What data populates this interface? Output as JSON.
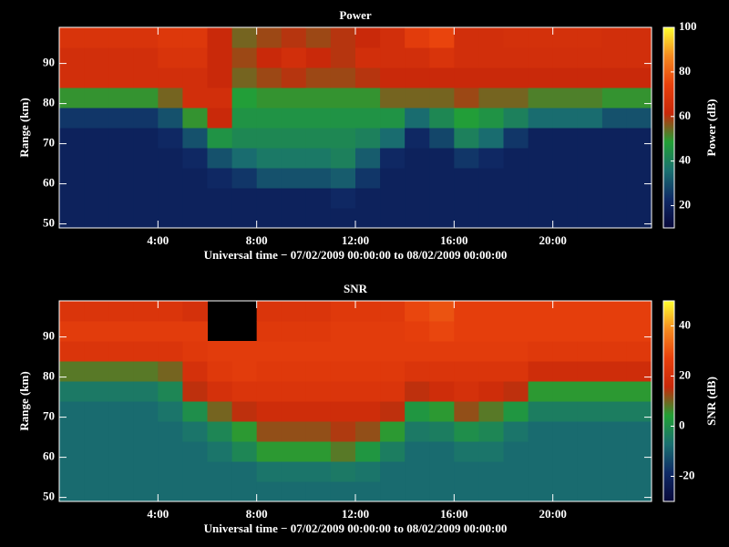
{
  "chart_data": [
    {
      "type": "heatmap",
      "title": "Power",
      "xlabel": "Universal time − 07/02/2009 00:00:00 to 08/02/2009 00:00:00",
      "ylabel": "Range (km)",
      "colorbar_label": "Power (dB)",
      "x_bins": [
        0,
        1,
        2,
        3,
        4,
        5,
        6,
        7,
        8,
        9,
        10,
        11,
        12,
        13,
        14,
        15,
        16,
        17,
        18,
        19,
        20,
        21,
        22,
        23,
        24
      ],
      "y_bins": [
        49,
        54,
        59,
        64,
        69,
        74,
        79,
        84,
        89,
        94,
        99
      ],
      "z": [
        [
          20,
          20,
          20,
          20,
          20,
          20,
          20,
          20,
          20,
          20,
          20,
          20,
          20,
          20,
          20,
          20,
          20,
          20,
          20,
          20,
          20,
          20,
          20,
          20
        ],
        [
          20,
          20,
          20,
          20,
          20,
          20,
          20,
          20,
          20,
          20,
          20,
          22,
          20,
          20,
          20,
          20,
          20,
          20,
          20,
          20,
          20,
          20,
          20,
          20
        ],
        [
          20,
          20,
          20,
          20,
          20,
          20,
          22,
          25,
          30,
          30,
          30,
          32,
          25,
          20,
          20,
          20,
          20,
          20,
          20,
          20,
          20,
          20,
          20,
          20
        ],
        [
          20,
          20,
          20,
          20,
          20,
          22,
          30,
          35,
          38,
          38,
          38,
          40,
          32,
          22,
          20,
          20,
          25,
          22,
          20,
          20,
          20,
          20,
          20,
          20
        ],
        [
          20,
          20,
          20,
          20,
          22,
          30,
          45,
          42,
          42,
          42,
          42,
          42,
          40,
          35,
          22,
          28,
          40,
          35,
          25,
          20,
          20,
          20,
          20,
          20
        ],
        [
          25,
          25,
          25,
          25,
          30,
          50,
          62,
          45,
          45,
          45,
          45,
          45,
          45,
          45,
          35,
          42,
          48,
          45,
          40,
          35,
          35,
          35,
          30,
          30
        ],
        [
          50,
          50,
          50,
          50,
          55,
          65,
          65,
          48,
          50,
          50,
          50,
          50,
          50,
          55,
          55,
          55,
          58,
          55,
          55,
          52,
          52,
          52,
          50,
          50
        ],
        [
          65,
          65,
          65,
          65,
          65,
          65,
          62,
          55,
          58,
          60,
          58,
          58,
          60,
          62,
          62,
          62,
          62,
          62,
          62,
          62,
          62,
          62,
          62,
          62
        ],
        [
          65,
          65,
          65,
          65,
          68,
          68,
          62,
          58,
          62,
          65,
          62,
          60,
          65,
          65,
          65,
          68,
          65,
          65,
          65,
          65,
          65,
          65,
          65,
          65
        ],
        [
          68,
          68,
          68,
          68,
          70,
          70,
          62,
          55,
          58,
          60,
          58,
          60,
          62,
          65,
          72,
          75,
          65,
          65,
          66,
          66,
          66,
          66,
          65,
          65
        ]
      ],
      "xlim": [
        0,
        24
      ],
      "ylim": [
        49,
        99
      ],
      "xticks": [
        {
          "value": 4,
          "label": "4:00"
        },
        {
          "value": 8,
          "label": "8:00"
        },
        {
          "value": 12,
          "label": "12:00"
        },
        {
          "value": 16,
          "label": "16:00"
        },
        {
          "value": 20,
          "label": "20:00"
        }
      ],
      "yticks": [
        50,
        60,
        70,
        80,
        90
      ],
      "clim": [
        10,
        100
      ],
      "cticks": [
        20,
        40,
        60,
        80,
        100
      ],
      "colorscale": [
        "#08083a",
        "#0f2a66",
        "#1a7070",
        "#22a035",
        "#c8280a",
        "#e8400c",
        "#f58a20",
        "#ffff30"
      ]
    },
    {
      "type": "heatmap",
      "title": "SNR",
      "xlabel": "Universal time − 07/02/2009 00:00:00 to 08/02/2009 00:00:00",
      "ylabel": "Range (km)",
      "colorbar_label": "SNR (dB)",
      "x_bins": [
        0,
        1,
        2,
        3,
        4,
        5,
        6,
        7,
        8,
        9,
        10,
        11,
        12,
        13,
        14,
        15,
        16,
        17,
        18,
        19,
        20,
        21,
        22,
        23,
        24
      ],
      "y_bins": [
        49,
        54,
        59,
        64,
        69,
        74,
        79,
        84,
        89,
        94,
        99
      ],
      "z": [
        [
          -8,
          -8,
          -8,
          -8,
          -8,
          -8,
          -8,
          -8,
          -8,
          -8,
          -8,
          -8,
          -8,
          -8,
          -8,
          -8,
          -8,
          -8,
          -8,
          -8,
          -8,
          -8,
          -8,
          -8
        ],
        [
          -8,
          -8,
          -8,
          -8,
          -8,
          -8,
          -8,
          -8,
          -6,
          -6,
          -6,
          -5,
          -6,
          -8,
          -8,
          -8,
          -8,
          -8,
          -8,
          -8,
          -8,
          -8,
          -8,
          -8
        ],
        [
          -8,
          -8,
          -8,
          -8,
          -8,
          -8,
          -6,
          -2,
          5,
          5,
          5,
          8,
          2,
          -4,
          -8,
          -8,
          -6,
          -6,
          -8,
          -8,
          -8,
          -8,
          -8,
          -8
        ],
        [
          -8,
          -8,
          -8,
          -8,
          -8,
          -6,
          -2,
          5,
          12,
          12,
          12,
          14,
          12,
          5,
          -5,
          -4,
          0,
          -2,
          -6,
          -8,
          -8,
          -8,
          -8,
          -8
        ],
        [
          -8,
          -8,
          -8,
          -8,
          -6,
          0,
          10,
          15,
          18,
          18,
          18,
          18,
          18,
          15,
          2,
          5,
          12,
          8,
          2,
          -4,
          -4,
          -4,
          -4,
          -4
        ],
        [
          -5,
          -5,
          -5,
          -5,
          -2,
          15,
          20,
          22,
          22,
          22,
          22,
          22,
          22,
          22,
          15,
          18,
          20,
          18,
          15,
          5,
          5,
          5,
          5,
          5
        ],
        [
          8,
          8,
          8,
          8,
          10,
          20,
          24,
          25,
          24,
          24,
          24,
          24,
          24,
          24,
          22,
          22,
          22,
          22,
          22,
          18,
          18,
          18,
          18,
          18
        ],
        [
          22,
          22,
          22,
          22,
          22,
          24,
          25,
          25,
          25,
          25,
          25,
          25,
          25,
          25,
          25,
          25,
          25,
          25,
          25,
          24,
          24,
          24,
          24,
          24
        ],
        [
          25,
          25,
          25,
          25,
          25,
          25,
          null,
          null,
          24,
          24,
          24,
          25,
          25,
          25,
          26,
          28,
          26,
          26,
          26,
          26,
          26,
          26,
          26,
          26
        ],
        [
          22,
          22,
          22,
          22,
          22,
          20,
          null,
          null,
          22,
          22,
          22,
          24,
          24,
          24,
          28,
          30,
          26,
          26,
          26,
          26,
          26,
          26,
          26,
          26
        ]
      ],
      "xlim": [
        0,
        24
      ],
      "ylim": [
        49,
        99
      ],
      "xticks": [
        {
          "value": 4,
          "label": "4:00"
        },
        {
          "value": 8,
          "label": "8:00"
        },
        {
          "value": 12,
          "label": "12:00"
        },
        {
          "value": 16,
          "label": "16:00"
        },
        {
          "value": 20,
          "label": "20:00"
        }
      ],
      "yticks": [
        50,
        60,
        70,
        80,
        90
      ],
      "clim": [
        -30,
        50
      ],
      "cticks": [
        -20,
        0,
        20,
        40
      ],
      "colorscale": [
        "#08083a",
        "#0f2a66",
        "#1a7070",
        "#22a035",
        "#c8280a",
        "#e8400c",
        "#f58a20",
        "#ffff30"
      ]
    }
  ]
}
